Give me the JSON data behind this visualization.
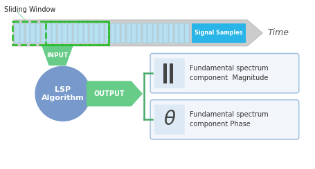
{
  "bg_color": "#ffffff",
  "gray_arrow_color": "#cccccc",
  "gray_arrow_edge": "#bbbbbb",
  "signal_bar_fill": "#b8e0f0",
  "signal_bar_edge": "#88c8e8",
  "signal_cyan_fill": "#29b5e8",
  "signal_label": "Signal Samples",
  "time_label": "Time",
  "sliding_window_label": "Sliding Window",
  "sw_color": "#22bb22",
  "sw_annot_color": "#88ddaa",
  "input_color": "#66cc88",
  "input_label": "INPUT",
  "lsp_color": "#7799cc",
  "lsp_label": "LSP\nAlgorithm",
  "output_color": "#66cc88",
  "output_label": "OUTPUT",
  "box_fill": "#ddeaf5",
  "box_edge": "#99bbdd",
  "bracket_color": "#44aa66",
  "icon_bar_color": "#444444",
  "magnitude_text": "Fundamental spectrum\ncomponent  Magnitude",
  "phase_text": "Fundamental spectrum\ncomponent Phase",
  "text_color": "#333333"
}
